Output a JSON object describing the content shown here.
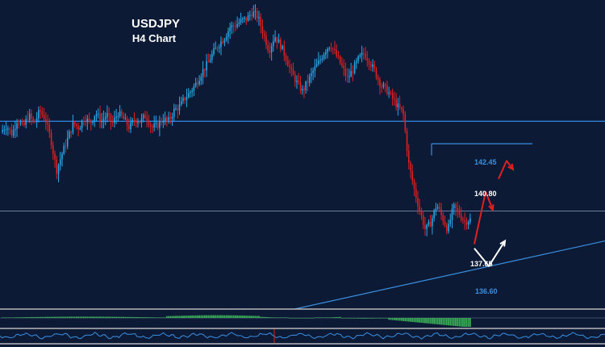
{
  "chart_data": {
    "type": "candlestick",
    "title": "USDJPY",
    "subtitle": "H4 Chart",
    "xlabel": "",
    "ylabel": "",
    "ylim": [
      135.2,
      148.8
    ],
    "grid": false,
    "colors": {
      "background": "#0c1a36",
      "bull": "#2aa7e8",
      "bear": "#e02020",
      "level_line": "#2f7fd6",
      "projection_up_red": "#e02020",
      "projection_white": "#ffffff",
      "histogram_pos": "#3fbf5a",
      "histogram_neg": "#3fbf5a"
    },
    "levels": [
      {
        "label": "",
        "value": 143.5,
        "style": "horizontal-full"
      },
      {
        "label": "142.45",
        "value": 142.45,
        "style": "horizontal-short",
        "color": "#3a8fe0"
      },
      {
        "label": "140.80",
        "value": 140.8,
        "style": "marker",
        "color": "#ffffff"
      },
      {
        "label": "",
        "value": 139.3,
        "style": "horizontal-thin"
      },
      {
        "label": "137.65",
        "value": 137.65,
        "style": "marker",
        "color": "#ffffff"
      },
      {
        "label": "136.60",
        "value": 136.6,
        "style": "trendline",
        "color": "#3a8fe0"
      }
    ],
    "series": [
      {
        "ohlc_path": [
          143.0,
          143.3,
          142.9,
          143.6,
          143.2,
          143.8,
          143.4,
          144.0,
          143.6,
          142.6,
          141.2,
          142.0,
          142.7,
          143.4,
          143.2,
          143.7,
          143.4,
          143.9,
          143.5,
          143.8,
          143.4,
          143.9,
          143.6,
          143.2,
          143.6,
          143.5,
          143.8,
          143.2,
          143.3,
          143.6,
          143.5,
          144.0,
          144.2,
          144.6,
          144.9,
          145.3,
          145.8,
          146.2,
          146.7,
          147.1,
          147.4,
          147.9,
          148.0,
          148.2,
          148.3,
          148.6,
          148.4,
          147.6,
          146.8,
          147.5,
          147.1,
          146.5,
          145.8,
          145.3,
          144.9,
          145.4,
          145.9,
          146.3,
          146.8,
          147.1,
          146.6,
          146.1,
          145.5,
          145.9,
          146.4,
          146.7,
          146.3,
          145.8,
          145.2,
          145.0,
          144.6,
          144.2,
          143.9,
          141.5,
          140.3,
          139.3,
          138.4,
          138.8,
          139.6,
          139.0,
          138.4,
          139.5,
          139.2,
          138.8,
          138.9
        ]
      }
    ],
    "projections": [
      {
        "name": "red-upper",
        "path": [
          [
            0,
            140.8
          ],
          [
            1,
            141.6
          ],
          [
            2,
            141.2
          ]
        ]
      },
      {
        "name": "red-lower",
        "path": [
          [
            0,
            138.3
          ],
          [
            1,
            139.6
          ],
          [
            2,
            139.1
          ]
        ]
      },
      {
        "name": "white",
        "path": [
          [
            0,
            137.4
          ],
          [
            1,
            136.6
          ],
          [
            2,
            137.9
          ]
        ]
      }
    ],
    "indicators": [
      {
        "type": "histogram",
        "panel": "oscillator-1"
      },
      {
        "type": "line",
        "panel": "oscillator-2"
      }
    ]
  }
}
